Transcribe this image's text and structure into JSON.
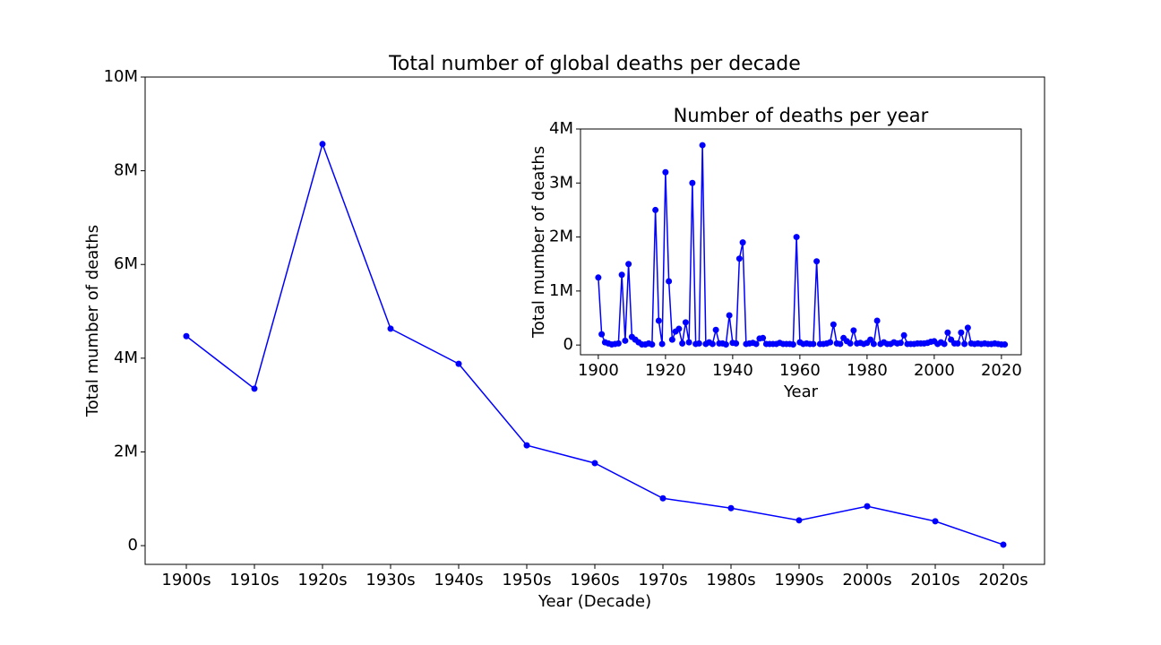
{
  "chart_data": [
    {
      "type": "line",
      "title": "Total number of global deaths per decade",
      "x_label": "Year (Decade)",
      "y_label": "Total mumber of deaths",
      "color": "#0000ff",
      "categories": [
        "1900s",
        "1910s",
        "1920s",
        "1930s",
        "1940s",
        "1950s",
        "1960s",
        "1970s",
        "1980s",
        "1990s",
        "2000s",
        "2010s",
        "2020s"
      ],
      "values": [
        4470000,
        3350000,
        8570000,
        4630000,
        3880000,
        2140000,
        1760000,
        1010000,
        800000,
        540000,
        840000,
        520000,
        20000
      ],
      "ylim": [
        -400000,
        10000000
      ],
      "yticks": [
        0,
        {
          "value": 2000000,
          "label": "2M"
        },
        {
          "value": 4000000,
          "label": "4M"
        },
        {
          "value": 6000000,
          "label": "6M"
        },
        {
          "value": 8000000,
          "label": "8M"
        },
        {
          "value": 10000000,
          "label": "10M"
        }
      ]
    },
    {
      "type": "line",
      "title": "Number of deaths per year",
      "x_label": "Year",
      "y_label": "Total mumber of deaths",
      "color": "#0000ff",
      "x": [
        1900,
        1901,
        1902,
        1903,
        1904,
        1905,
        1906,
        1907,
        1908,
        1909,
        1910,
        1911,
        1912,
        1913,
        1914,
        1915,
        1916,
        1917,
        1918,
        1919,
        1920,
        1921,
        1922,
        1923,
        1924,
        1925,
        1926,
        1927,
        1928,
        1929,
        1930,
        1931,
        1932,
        1933,
        1934,
        1935,
        1936,
        1937,
        1938,
        1939,
        1940,
        1941,
        1942,
        1943,
        1944,
        1945,
        1946,
        1947,
        1948,
        1949,
        1950,
        1951,
        1952,
        1953,
        1954,
        1955,
        1956,
        1957,
        1958,
        1959,
        1960,
        1961,
        1962,
        1963,
        1964,
        1965,
        1966,
        1967,
        1968,
        1969,
        1970,
        1971,
        1972,
        1973,
        1974,
        1975,
        1976,
        1977,
        1978,
        1979,
        1980,
        1981,
        1982,
        1983,
        1984,
        1985,
        1986,
        1987,
        1988,
        1989,
        1990,
        1991,
        1992,
        1993,
        1994,
        1995,
        1996,
        1997,
        1998,
        1999,
        2000,
        2001,
        2002,
        2003,
        2004,
        2005,
        2006,
        2007,
        2008,
        2009,
        2010,
        2011,
        2012,
        2013,
        2014,
        2015,
        2016,
        2017,
        2018,
        2019,
        2020,
        2021
      ],
      "values": [
        1250000,
        200000,
        50000,
        30000,
        10000,
        20000,
        30000,
        1300000,
        80000,
        1500000,
        150000,
        100000,
        50000,
        10000,
        10000,
        30000,
        10000,
        2500000,
        450000,
        20000,
        3200000,
        1180000,
        100000,
        250000,
        300000,
        30000,
        420000,
        50000,
        3000000,
        20000,
        30000,
        3700000,
        20000,
        50000,
        20000,
        280000,
        30000,
        30000,
        10000,
        550000,
        40000,
        30000,
        1600000,
        1900000,
        20000,
        30000,
        40000,
        20000,
        120000,
        130000,
        20000,
        20000,
        20000,
        20000,
        40000,
        20000,
        20000,
        20000,
        10000,
        2000000,
        50000,
        20000,
        30000,
        20000,
        20000,
        1550000,
        20000,
        20000,
        30000,
        50000,
        380000,
        30000,
        20000,
        130000,
        70000,
        30000,
        270000,
        30000,
        40000,
        20000,
        40000,
        100000,
        20000,
        450000,
        20000,
        50000,
        20000,
        20000,
        50000,
        30000,
        40000,
        180000,
        20000,
        20000,
        20000,
        30000,
        30000,
        30000,
        40000,
        60000,
        70000,
        20000,
        50000,
        20000,
        230000,
        100000,
        30000,
        30000,
        230000,
        20000,
        320000,
        30000,
        20000,
        30000,
        20000,
        30000,
        20000,
        20000,
        30000,
        20000,
        10000,
        10000
      ],
      "xlim": [
        1894.7,
        2025.9
      ],
      "xticks": [
        1900,
        1920,
        1940,
        1960,
        1980,
        2000,
        2020
      ],
      "ylim": [
        -180000,
        4000000
      ],
      "yticks": [
        0,
        {
          "value": 1000000,
          "label": "1M"
        },
        {
          "value": 2000000,
          "label": "2M"
        },
        {
          "value": 3000000,
          "label": "3M"
        },
        {
          "value": 4000000,
          "label": "4M"
        }
      ]
    }
  ]
}
